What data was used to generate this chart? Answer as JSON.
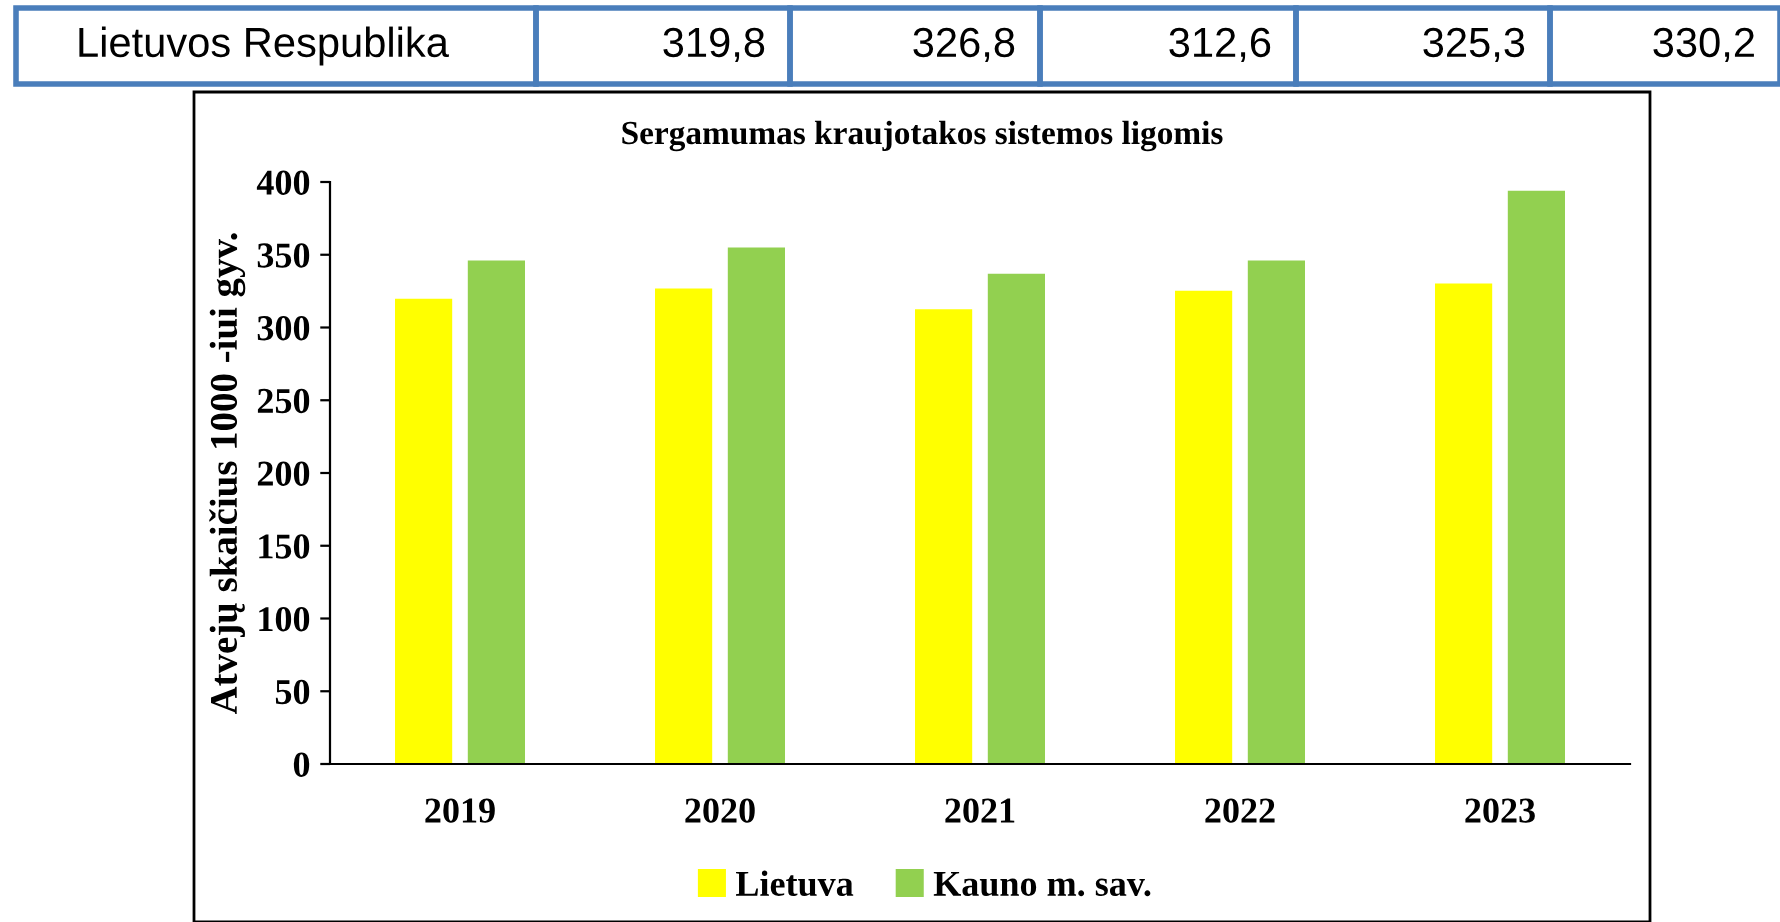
{
  "chart_data": {
    "type": "bar",
    "title": "Sergamumas kraujotakos sistemos ligomis",
    "ylabel": "Atvejų skaičius 1000 -iui gyv.",
    "categories": [
      "2019",
      "2020",
      "2021",
      "2022",
      "2023"
    ],
    "series": [
      {
        "name": "Lietuva",
        "color": "#ffff00",
        "values": [
          319.8,
          326.8,
          312.6,
          325.3,
          330.2
        ]
      },
      {
        "name": "Kauno m. sav.",
        "color": "#92d050",
        "values": [
          346,
          355,
          337,
          346,
          394
        ]
      }
    ],
    "ylim": [
      0,
      400
    ],
    "yticks": [
      0,
      50,
      100,
      150,
      200,
      250,
      300,
      350,
      400
    ],
    "grid": false,
    "legend": "bottom",
    "annotations": [
      "Lietuvos Respublika",
      "319,8",
      "326,8",
      "312,6",
      "325,3",
      "330,2"
    ]
  }
}
